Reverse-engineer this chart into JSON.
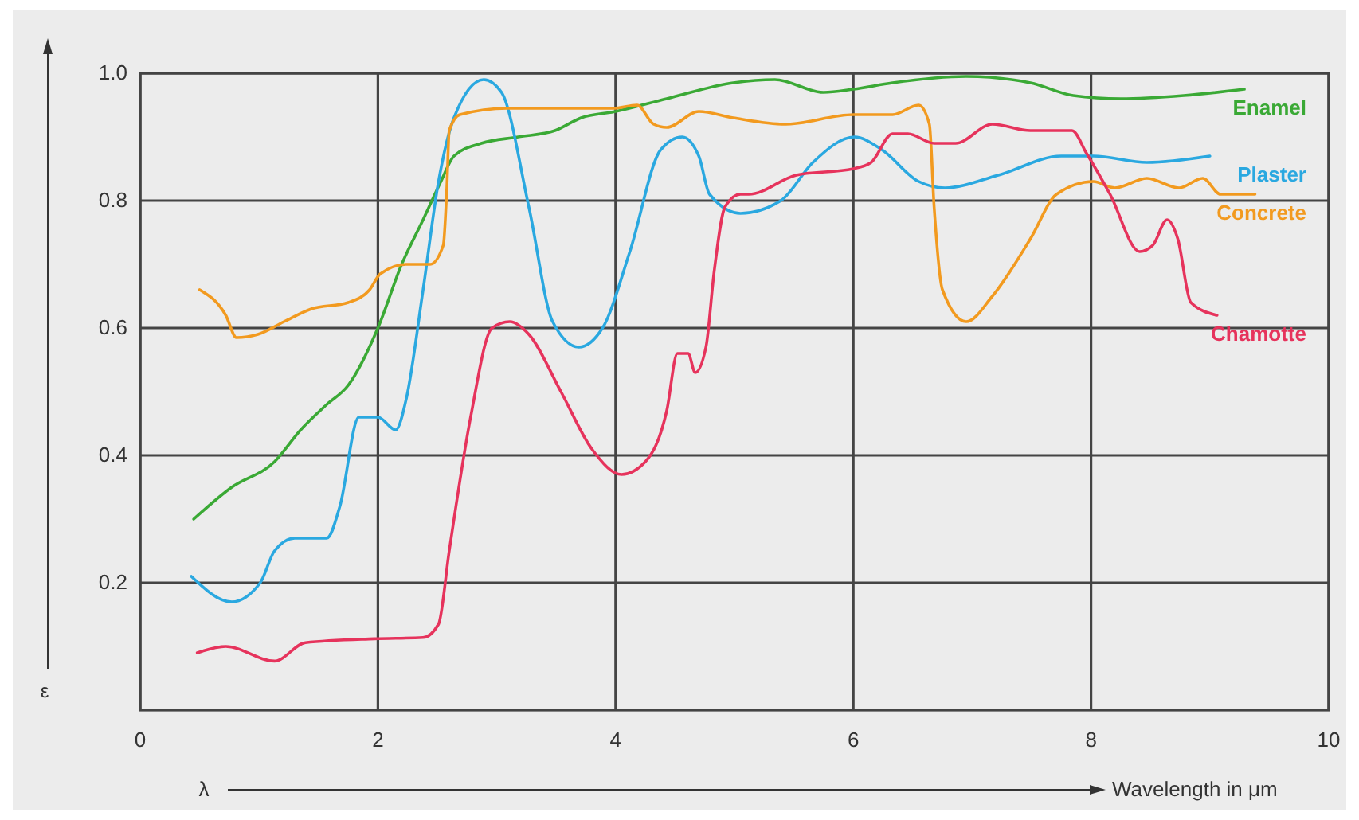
{
  "chart_data": {
    "type": "line",
    "xlabel": "Wavelength in μm",
    "ylabel": "ε",
    "annotations": [
      "λ"
    ],
    "xlim": [
      0,
      10
    ],
    "ylim": [
      0,
      1
    ],
    "xticks": [
      0,
      2,
      4,
      6,
      8,
      10
    ],
    "yticks": [
      0.2,
      0.4,
      0.6,
      0.8,
      {
        "value": 1,
        "label": "1.0"
      }
    ],
    "grid": true,
    "legend": false,
    "marker": "none",
    "line_style": "solid",
    "series": [
      {
        "name": "Enamel",
        "color": "#3aa935",
        "x": [
          0.45,
          0.77,
          1.13,
          1.35,
          1.57,
          1.75,
          2.0,
          2.2,
          2.38,
          2.53,
          2.64,
          2.87,
          3.18,
          3.49,
          3.71,
          4.0,
          4.43,
          4.99,
          5.34,
          5.75,
          6.0,
          6.33,
          6.95,
          7.49,
          7.85,
          8.25,
          8.78,
          9.29
        ],
        "values": [
          0.3,
          0.35,
          0.39,
          0.44,
          0.48,
          0.51,
          0.6,
          0.7,
          0.77,
          0.83,
          0.87,
          0.89,
          0.9,
          0.91,
          0.93,
          0.94,
          0.96,
          0.985,
          0.99,
          0.97,
          0.975,
          0.985,
          0.995,
          0.985,
          0.965,
          0.96,
          0.965,
          0.975
        ]
      },
      {
        "name": "Plaster",
        "color": "#2aa8e0",
        "x": [
          0.43,
          0.77,
          1.01,
          1.13,
          1.3,
          1.57,
          1.68,
          1.84,
          2.0,
          2.15,
          2.24,
          2.38,
          2.51,
          2.64,
          2.89,
          3.04,
          3.27,
          3.47,
          3.69,
          3.89,
          4.12,
          4.38,
          4.56,
          4.7,
          4.79,
          5.05,
          5.39,
          5.66,
          6.01,
          6.24,
          6.55,
          6.77,
          7.22,
          7.75,
          8.02,
          8.47,
          9.0
        ],
        "values": [
          0.21,
          0.17,
          0.2,
          0.25,
          0.27,
          0.27,
          0.32,
          0.46,
          0.46,
          0.44,
          0.49,
          0.66,
          0.83,
          0.93,
          0.99,
          0.97,
          0.79,
          0.61,
          0.57,
          0.6,
          0.72,
          0.88,
          0.9,
          0.87,
          0.81,
          0.78,
          0.8,
          0.86,
          0.9,
          0.88,
          0.83,
          0.82,
          0.84,
          0.87,
          0.87,
          0.86,
          0.87
        ]
      },
      {
        "name": "Concrete",
        "color": "#f29a1f",
        "x": [
          0.5,
          0.72,
          0.81,
          0.99,
          1.21,
          1.44,
          1.75,
          1.93,
          2.02,
          2.24,
          2.44,
          2.55,
          2.58,
          2.6,
          2.69,
          3.09,
          3.98,
          4.18,
          4.32,
          4.43,
          4.7,
          4.99,
          5.43,
          6.0,
          6.33,
          6.55,
          6.64,
          6.68,
          6.75,
          6.95,
          7.17,
          7.49,
          7.71,
          8.02,
          8.2,
          8.47,
          8.74,
          8.94,
          9.09,
          9.38
        ],
        "values": [
          0.66,
          0.62,
          0.585,
          0.59,
          0.61,
          0.63,
          0.64,
          0.66,
          0.685,
          0.7,
          0.7,
          0.73,
          0.82,
          0.91,
          0.935,
          0.945,
          0.945,
          0.95,
          0.92,
          0.915,
          0.94,
          0.93,
          0.92,
          0.935,
          0.935,
          0.95,
          0.92,
          0.79,
          0.66,
          0.61,
          0.65,
          0.74,
          0.81,
          0.83,
          0.82,
          0.835,
          0.82,
          0.835,
          0.81,
          0.81
        ]
      },
      {
        "name": "Chamotte",
        "color": "#e6335c",
        "x": [
          0.48,
          0.72,
          1.13,
          1.39,
          1.97,
          2.38,
          2.51,
          2.6,
          2.78,
          2.96,
          3.11,
          3.27,
          3.54,
          3.8,
          4.05,
          4.25,
          4.43,
          4.52,
          4.61,
          4.67,
          4.76,
          4.83,
          4.92,
          5.05,
          5.12,
          5.52,
          6.0,
          6.15,
          6.33,
          6.46,
          6.68,
          6.86,
          7.17,
          7.49,
          7.84,
          7.96,
          8.16,
          8.41,
          8.52,
          8.64,
          8.73,
          8.84,
          9.06
        ],
        "values": [
          0.09,
          0.1,
          0.077,
          0.106,
          0.112,
          0.114,
          0.135,
          0.25,
          0.46,
          0.6,
          0.61,
          0.59,
          0.5,
          0.41,
          0.37,
          0.39,
          0.47,
          0.56,
          0.56,
          0.53,
          0.57,
          0.69,
          0.79,
          0.81,
          0.81,
          0.84,
          0.85,
          0.86,
          0.905,
          0.905,
          0.89,
          0.89,
          0.92,
          0.91,
          0.91,
          0.875,
          0.81,
          0.72,
          0.73,
          0.77,
          0.74,
          0.64,
          0.62
        ]
      }
    ]
  }
}
